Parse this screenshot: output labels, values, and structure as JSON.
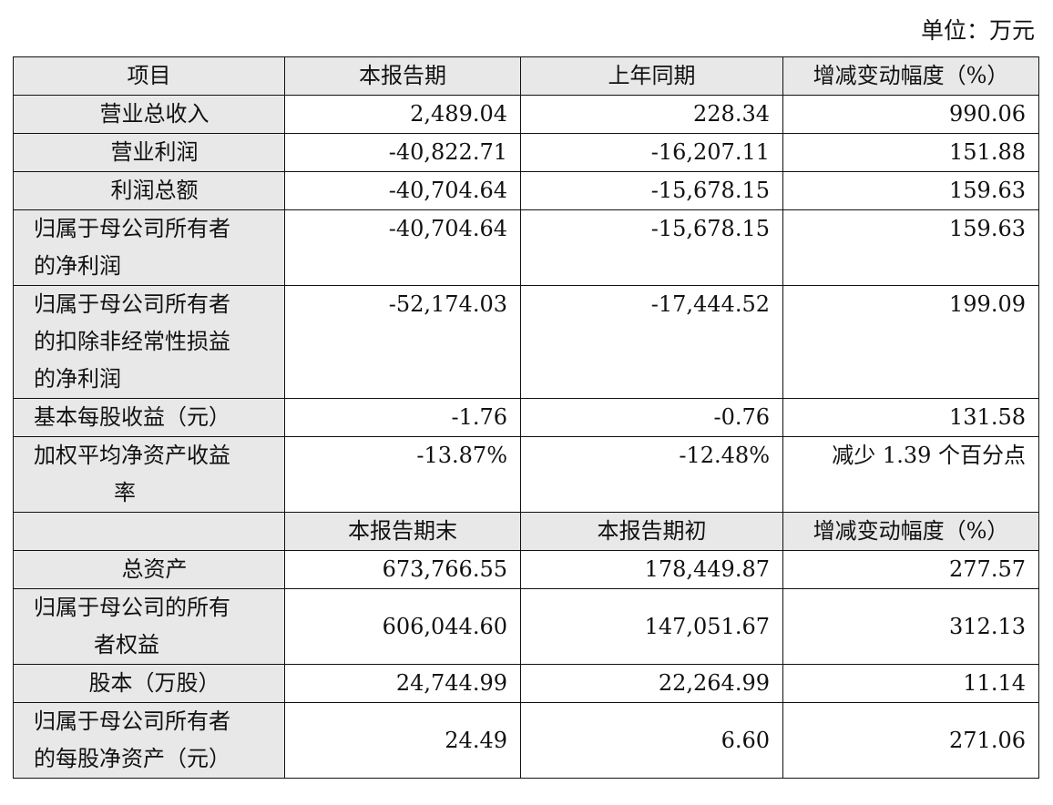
{
  "unit_label": "单位：万元",
  "section1": {
    "header": [
      "项目",
      "本报告期",
      "上年同期",
      "增减变动幅度（%）"
    ],
    "rows": [
      {
        "item": "营业总收入",
        "current": "2,489.04",
        "prior": "228.34",
        "change": "990.06"
      },
      {
        "item": "营业利润",
        "current": "-40,822.71",
        "prior": "-16,207.11",
        "change": "151.88"
      },
      {
        "item": "利润总额",
        "current": "-40,704.64",
        "prior": "-15,678.15",
        "change": "159.63"
      },
      {
        "item_lines": [
          "归属于母公司所有者",
          "的净利润"
        ],
        "current": "-40,704.64",
        "prior": "-15,678.15",
        "change": "159.63"
      },
      {
        "item_lines": [
          "归属于母公司所有者",
          "的扣除非经常性损益",
          "的净利润"
        ],
        "current": "-52,174.03",
        "prior": "-17,444.52",
        "change": "199.09"
      },
      {
        "item": "基本每股收益（元）",
        "current": "-1.76",
        "prior": "-0.76",
        "change": "131.58"
      },
      {
        "item_lines": [
          "加权平均净资产收益",
          "率"
        ],
        "current": "-13.87%",
        "prior": "-12.48%",
        "change": "减少 1.39 个百分点"
      }
    ]
  },
  "section2": {
    "header": [
      "",
      "本报告期末",
      "本报告期初",
      "增减变动幅度（%）"
    ],
    "rows": [
      {
        "item": "总资产",
        "current": "673,766.55",
        "prior": "178,449.87",
        "change": "277.57"
      },
      {
        "item_lines": [
          "归属于母公司的所有",
          "者权益"
        ],
        "current": "606,044.60",
        "prior": "147,051.67",
        "change": "312.13"
      },
      {
        "item": "股本（万股）",
        "current": "24,744.99",
        "prior": "22,264.99",
        "change": "11.14"
      },
      {
        "item_lines": [
          "归属于母公司所有者",
          "的每股净资产（元）"
        ],
        "current": "24.49",
        "prior": "6.60",
        "change": "271.06"
      }
    ]
  }
}
